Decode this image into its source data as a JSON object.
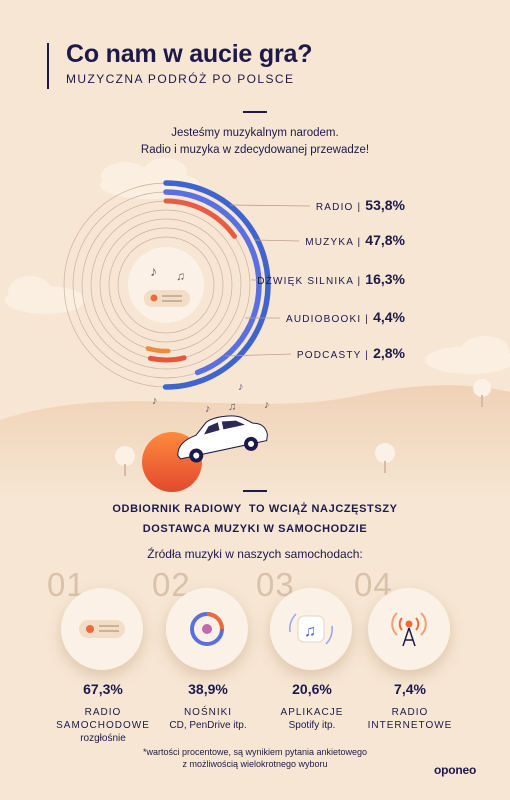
{
  "header": {
    "title": "Co nam w aucie gra?",
    "subtitle": "MUZYCZNA PODRÓŻ PO POLSCE",
    "intro_line1": "Jesteśmy muzykalnym narodem.",
    "intro_line2": "Radio i muzyka w zdecydowanej przewadze!"
  },
  "chart_data": {
    "type": "radial-bar",
    "unit": "%",
    "categories": [
      "RADIO",
      "MUZYKA",
      "DŹWIĘK SILNIKA",
      "AUDIOBOOKI",
      "PODCASTY"
    ],
    "values": [
      53.8,
      47.8,
      16.3,
      4.4,
      2.8
    ],
    "labels": [
      "RADIO | ",
      "MUZYKA | ",
      "DŹWIĘK SILNIKA | ",
      "AUDIOBOOKI | ",
      "PODCASTY | "
    ],
    "value_labels": [
      "53,8%",
      "47,8%",
      "16,3%",
      "4,4%",
      "2,8%"
    ],
    "colors": [
      "#3f63cf",
      "#5a6fe0",
      "#e85c45",
      "#e8553f",
      "#f08a3c"
    ]
  },
  "section2": {
    "headline_line1": "ODBIORNIK RADIOWY  TO WCIĄŻ NAJCZĘSTSZY",
    "headline_line2": "DOSTAWCA MUZYKI W SAMOCHODZIE",
    "sources_title": "Źródła muzyki w naszych samochodach:",
    "items": [
      {
        "num": "01",
        "value": "67,3%",
        "label1": "RADIO",
        "label2": "SAMOCHODOWE",
        "sub": "rozgłośnie",
        "icon": "car-radio-icon"
      },
      {
        "num": "02",
        "value": "38,9%",
        "label1": "NOŚNIKI",
        "label2": "",
        "sub": "CD, PenDrive itp.",
        "icon": "cd-disc-icon"
      },
      {
        "num": "03",
        "value": "20,6%",
        "label1": "APLIKACJE",
        "label2": "",
        "sub": "Spotify itp.",
        "icon": "music-app-icon"
      },
      {
        "num": "04",
        "value": "7,4%",
        "label1": "RADIO",
        "label2": "INTERNETOWE",
        "sub": "",
        "icon": "radio-tower-icon"
      }
    ]
  },
  "footer": {
    "note_line1": "*wartości procentowe, są wynikiem pytania ankietowego",
    "note_line2": "z możliwością wielokrotnego wyboru",
    "logo": "oponeo"
  },
  "colors": {
    "background": "#f6e6d3",
    "text": "#1d1a4a",
    "accent_orange": "#ee6a3a",
    "accent_blue": "#4a62d8"
  }
}
